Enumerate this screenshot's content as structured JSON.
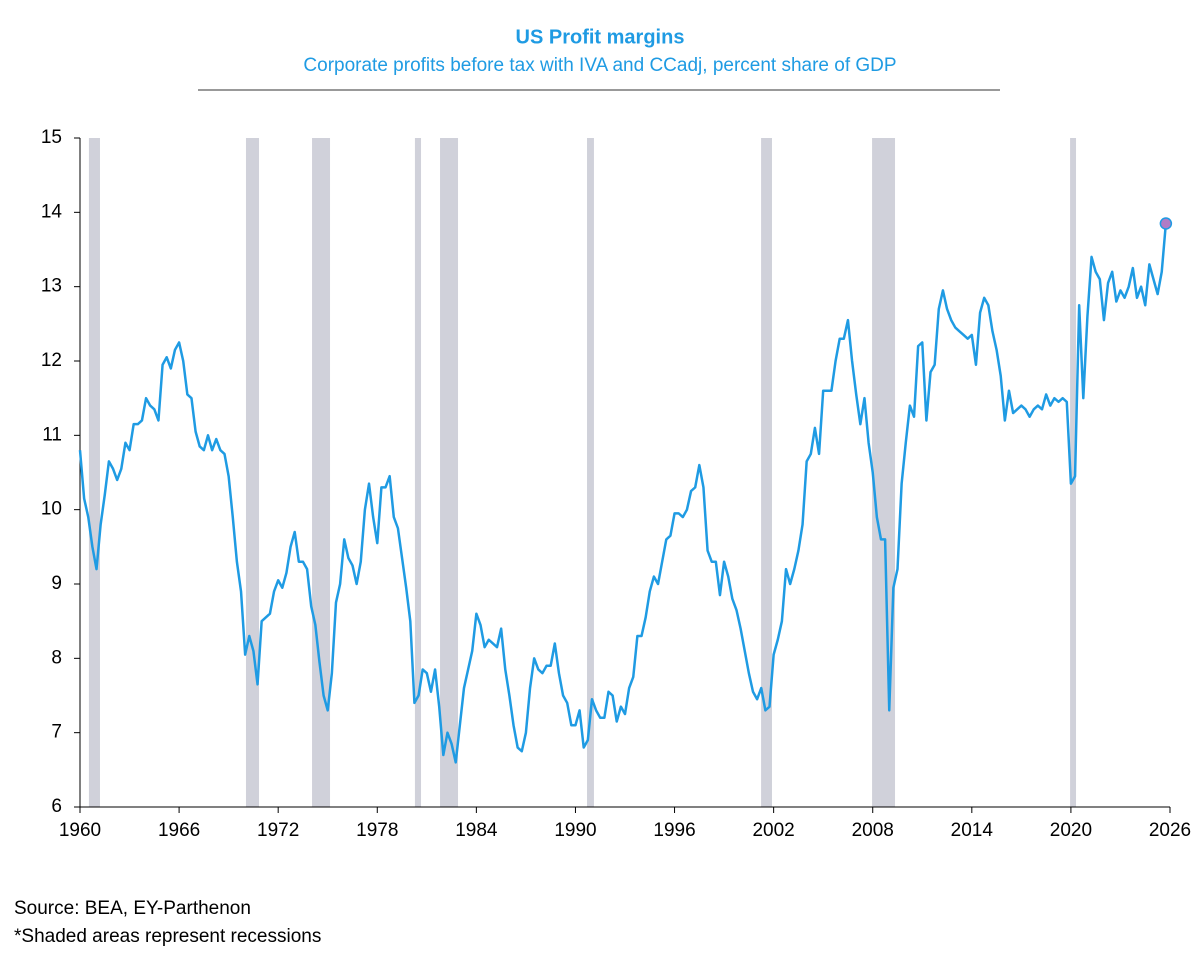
{
  "chart_data": {
    "type": "line",
    "title": "US Profit margins",
    "subtitle": "Corporate profits before tax with IVA and CCadj, percent share of GDP",
    "notes": [
      "Source: BEA, EY-Parthenon",
      "*Shaded areas represent recessions"
    ],
    "xlim": [
      1960,
      2026
    ],
    "xticks": [
      1960,
      1966,
      1972,
      1978,
      1984,
      1990,
      1996,
      2002,
      2008,
      2014,
      2020,
      2026
    ],
    "ylim": [
      6,
      15
    ],
    "yticks": [
      6,
      7,
      8,
      9,
      10,
      11,
      12,
      13,
      14,
      15
    ],
    "recessions": [
      [
        1960.54,
        1961.21
      ],
      [
        1970.05,
        1970.84
      ],
      [
        1974.05,
        1975.14
      ],
      [
        1980.28,
        1980.65
      ],
      [
        1981.8,
        1982.89
      ],
      [
        1990.7,
        1991.12
      ],
      [
        2001.24,
        2001.9
      ],
      [
        2007.96,
        2009.35
      ],
      [
        2019.95,
        2020.31
      ]
    ],
    "recession_color": "#d0d1da",
    "highlight_last": true,
    "marker_color": "#b07cc6",
    "x": [
      1960,
      1960.25,
      1960.5,
      1960.75,
      1961,
      1961.25,
      1961.5,
      1961.75,
      1962,
      1962.25,
      1962.5,
      1962.75,
      1963,
      1963.25,
      1963.5,
      1963.75,
      1964,
      1964.25,
      1964.5,
      1964.75,
      1965,
      1965.25,
      1965.5,
      1965.75,
      1966,
      1966.25,
      1966.5,
      1966.75,
      1967,
      1967.25,
      1967.5,
      1967.75,
      1968,
      1968.25,
      1968.5,
      1968.75,
      1969,
      1969.25,
      1969.5,
      1969.75,
      1970,
      1970.25,
      1970.5,
      1970.75,
      1971,
      1971.25,
      1971.5,
      1971.75,
      1972,
      1972.25,
      1972.5,
      1972.75,
      1973,
      1973.25,
      1973.5,
      1973.75,
      1974,
      1974.25,
      1974.5,
      1974.75,
      1975,
      1975.25,
      1975.5,
      1975.75,
      1976,
      1976.25,
      1976.5,
      1976.75,
      1977,
      1977.25,
      1977.5,
      1977.75,
      1978,
      1978.25,
      1978.5,
      1978.75,
      1979,
      1979.25,
      1979.5,
      1979.75,
      1980,
      1980.25,
      1980.5,
      1980.75,
      1981,
      1981.25,
      1981.5,
      1981.75,
      1982,
      1982.25,
      1982.5,
      1982.75,
      1983,
      1983.25,
      1983.5,
      1983.75,
      1984,
      1984.25,
      1984.5,
      1984.75,
      1985,
      1985.25,
      1985.5,
      1985.75,
      1986,
      1986.25,
      1986.5,
      1986.75,
      1987,
      1987.25,
      1987.5,
      1987.75,
      1988,
      1988.25,
      1988.5,
      1988.75,
      1989,
      1989.25,
      1989.5,
      1989.75,
      1990,
      1990.25,
      1990.5,
      1990.75,
      1991,
      1991.25,
      1991.5,
      1991.75,
      1992,
      1992.25,
      1992.5,
      1992.75,
      1993,
      1993.25,
      1993.5,
      1993.75,
      1994,
      1994.25,
      1994.5,
      1994.75,
      1995,
      1995.25,
      1995.5,
      1995.75,
      1996,
      1996.25,
      1996.5,
      1996.75,
      1997,
      1997.25,
      1997.5,
      1997.75,
      1998,
      1998.25,
      1998.5,
      1998.75,
      1999,
      1999.25,
      1999.5,
      1999.75,
      2000,
      2000.25,
      2000.5,
      2000.75,
      2001,
      2001.25,
      2001.5,
      2001.75,
      2002,
      2002.25,
      2002.5,
      2002.75,
      2003,
      2003.25,
      2003.5,
      2003.75,
      2004,
      2004.25,
      2004.5,
      2004.75,
      2005,
      2005.25,
      2005.5,
      2005.75,
      2006,
      2006.25,
      2006.5,
      2006.75,
      2007,
      2007.25,
      2007.5,
      2007.75,
      2008,
      2008.25,
      2008.5,
      2008.75,
      2009,
      2009.25,
      2009.5,
      2009.75,
      2010,
      2010.25,
      2010.5,
      2010.75,
      2011,
      2011.25,
      2011.5,
      2011.75,
      2012,
      2012.25,
      2012.5,
      2012.75,
      2013,
      2013.25,
      2013.5,
      2013.75,
      2014,
      2014.25,
      2014.5,
      2014.75,
      2015,
      2015.25,
      2015.5,
      2015.75,
      2016,
      2016.25,
      2016.5,
      2016.75,
      2017,
      2017.25,
      2017.5,
      2017.75,
      2018,
      2018.25,
      2018.5,
      2018.75,
      2019,
      2019.25,
      2019.5,
      2019.75,
      2020,
      2020.25,
      2020.5,
      2020.75,
      2021,
      2021.25,
      2021.5,
      2021.75,
      2022,
      2022.25,
      2022.5,
      2022.75,
      2023,
      2023.25,
      2023.5,
      2023.75,
      2024,
      2024.25,
      2024.5,
      2024.75,
      2025,
      2025.25,
      2025.5,
      2025.75
    ],
    "series": [
      {
        "name": "Profit margin",
        "color": "#1f9be3",
        "values": [
          10.8,
          10.15,
          9.9,
          9.5,
          9.2,
          9.8,
          10.2,
          10.65,
          10.55,
          10.4,
          10.55,
          10.9,
          10.8,
          11.15,
          11.15,
          11.2,
          11.5,
          11.4,
          11.35,
          11.2,
          11.95,
          12.05,
          11.9,
          12.15,
          12.25,
          12.0,
          11.55,
          11.5,
          11.05,
          10.85,
          10.8,
          11.0,
          10.8,
          10.95,
          10.8,
          10.75,
          10.45,
          9.9,
          9.3,
          8.9,
          8.05,
          8.3,
          8.1,
          7.65,
          8.5,
          8.55,
          8.6,
          8.9,
          9.05,
          8.95,
          9.15,
          9.5,
          9.7,
          9.3,
          9.3,
          9.2,
          8.7,
          8.45,
          7.95,
          7.5,
          7.3,
          7.8,
          8.75,
          9.0,
          9.6,
          9.35,
          9.25,
          9.0,
          9.3,
          10.0,
          10.35,
          9.9,
          9.55,
          10.3,
          10.3,
          10.45,
          9.9,
          9.75,
          9.35,
          8.95,
          8.5,
          7.4,
          7.5,
          7.85,
          7.8,
          7.55,
          7.85,
          7.35,
          6.7,
          7.0,
          6.85,
          6.6,
          7.1,
          7.6,
          7.85,
          8.1,
          8.6,
          8.45,
          8.15,
          8.25,
          8.2,
          8.15,
          8.4,
          7.85,
          7.5,
          7.1,
          6.8,
          6.75,
          7.0,
          7.6,
          8.0,
          7.85,
          7.8,
          7.9,
          7.9,
          8.2,
          7.8,
          7.5,
          7.4,
          7.1,
          7.1,
          7.3,
          6.8,
          6.9,
          7.45,
          7.3,
          7.2,
          7.2,
          7.55,
          7.5,
          7.15,
          7.35,
          7.25,
          7.6,
          7.75,
          8.3,
          8.3,
          8.55,
          8.9,
          9.1,
          9.0,
          9.3,
          9.6,
          9.65,
          9.95,
          9.95,
          9.9,
          10.0,
          10.25,
          10.3,
          10.6,
          10.3,
          9.45,
          9.3,
          9.3,
          8.85,
          9.3,
          9.1,
          8.8,
          8.65,
          8.4,
          8.1,
          7.8,
          7.55,
          7.45,
          7.6,
          7.3,
          7.35,
          8.05,
          8.25,
          8.5,
          9.2,
          9.0,
          9.2,
          9.45,
          9.8,
          10.65,
          10.75,
          11.1,
          10.75,
          11.6,
          11.6,
          11.6,
          12.0,
          12.3,
          12.3,
          12.55,
          12.0,
          11.55,
          11.15,
          11.5,
          10.9,
          10.5,
          9.9,
          9.6,
          9.6,
          7.3,
          8.95,
          9.2,
          10.35,
          10.9,
          11.4,
          11.25,
          12.2,
          12.25,
          11.2,
          11.85,
          11.95,
          12.7,
          12.95,
          12.7,
          12.55,
          12.45,
          12.4,
          12.35,
          12.3,
          12.35,
          11.95,
          12.65,
          12.85,
          12.75,
          12.4,
          12.15,
          11.8,
          11.2,
          11.6,
          11.3,
          11.35,
          11.4,
          11.35,
          11.25,
          11.35,
          11.4,
          11.35,
          11.55,
          11.4,
          11.5,
          11.45,
          11.5,
          11.45,
          10.35,
          10.45,
          12.75,
          11.5,
          12.6,
          13.4,
          13.2,
          13.1,
          12.55,
          13.05,
          13.2,
          12.8,
          12.95,
          12.85,
          13.0,
          13.25,
          12.85,
          13.0,
          12.75,
          13.3,
          13.1,
          12.9,
          13.2,
          13.85
        ]
      }
    ]
  }
}
